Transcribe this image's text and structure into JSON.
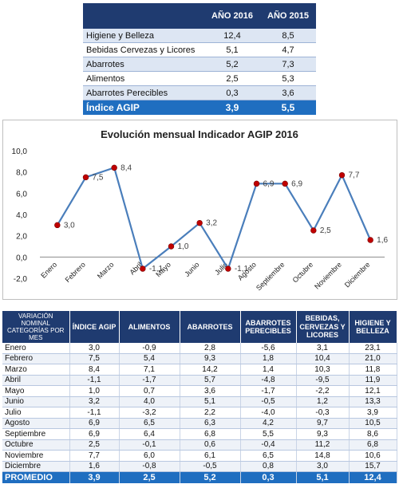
{
  "summary_table": {
    "headers": [
      "",
      "AÑO 2016",
      "AÑO 2015"
    ],
    "rows": [
      [
        "Higiene y Belleza",
        "12,4",
        "8,5"
      ],
      [
        "Bebidas Cervezas y Licores",
        "5,1",
        "4,7"
      ],
      [
        "Abarrotes",
        "5,2",
        "7,3"
      ],
      [
        "Alimentos",
        "2,5",
        "5,3"
      ],
      [
        "Abarrotes Perecibles",
        "0,3",
        "3,6"
      ]
    ],
    "total": [
      "Índice AGIP",
      "3,9",
      "5,5"
    ]
  },
  "chart_data": {
    "type": "line",
    "title": "Evolución mensual Indicador AGIP 2016",
    "categories": [
      "Enero",
      "Febrero",
      "Marzo",
      "Abril",
      "Mayo",
      "Junio",
      "Julio",
      "Agosto",
      "Septiembre",
      "Octubre",
      "Noviembre",
      "Diciembre"
    ],
    "values": [
      3.0,
      7.5,
      8.4,
      -1.1,
      1.0,
      3.2,
      -1.1,
      6.9,
      6.9,
      2.5,
      7.7,
      1.6
    ],
    "value_labels": [
      "3,0",
      "7,5",
      "8,4",
      "-1,1",
      "1,0",
      "3,2",
      "-1,1",
      "6,9",
      "6,9",
      "2,5",
      "7,7",
      "1,6"
    ],
    "yticks": [
      "10,0",
      "8,0",
      "6,0",
      "4,0",
      "2,0",
      "0,0",
      "-2,0"
    ],
    "ylim": [
      -2,
      10
    ],
    "line_color": "#4a7ebb",
    "marker_color": "#c00000",
    "grid": false
  },
  "monthly_table": {
    "headers": [
      "VARIACIÓN NOMINAL CATEGORÍAS POR MES",
      "ÍNDICE AGIP",
      "ALIMENTOS",
      "ABARROTES",
      "ABARROTES PERECIBLES",
      "BEBIDAS, CERVEZAS Y LICORES",
      "HIGIENE Y BELLEZA"
    ],
    "rows": [
      [
        "Enero",
        "3,0",
        "-0,9",
        "2,8",
        "-5,6",
        "3,1",
        "23,1"
      ],
      [
        "Febrero",
        "7,5",
        "5,4",
        "9,3",
        "1,8",
        "10,4",
        "21,0"
      ],
      [
        "Marzo",
        "8,4",
        "7,1",
        "14,2",
        "1,4",
        "10,3",
        "11,8"
      ],
      [
        "Abril",
        "-1,1",
        "-1,7",
        "5,7",
        "-4,8",
        "-9,5",
        "11,9"
      ],
      [
        "Mayo",
        "1,0",
        "0,7",
        "3,6",
        "-1,7",
        "-2,2",
        "12,1"
      ],
      [
        "Junio",
        "3,2",
        "4,0",
        "5,1",
        "-0,5",
        "1,2",
        "13,3"
      ],
      [
        "Julio",
        "-1,1",
        "-3,2",
        "2,2",
        "-4,0",
        "-0,3",
        "3,9"
      ],
      [
        "Agosto",
        "6,9",
        "6,5",
        "6,3",
        "4,2",
        "9,7",
        "10,5"
      ],
      [
        "Septiembre",
        "6,9",
        "6,4",
        "6,8",
        "5,5",
        "9,3",
        "8,6"
      ],
      [
        "Octubre",
        "2,5",
        "-0,1",
        "0,6",
        "-0,4",
        "11,2",
        "6,8"
      ],
      [
        "Noviembre",
        "7,7",
        "6,0",
        "6,1",
        "6,5",
        "14,8",
        "10,6"
      ],
      [
        "Diciembre",
        "1,6",
        "-0,8",
        "-0,5",
        "0,8",
        "3,0",
        "15,7"
      ]
    ],
    "total": [
      "PROMEDIO",
      "3,9",
      "2,5",
      "5,2",
      "0,3",
      "5,1",
      "12,4"
    ]
  }
}
